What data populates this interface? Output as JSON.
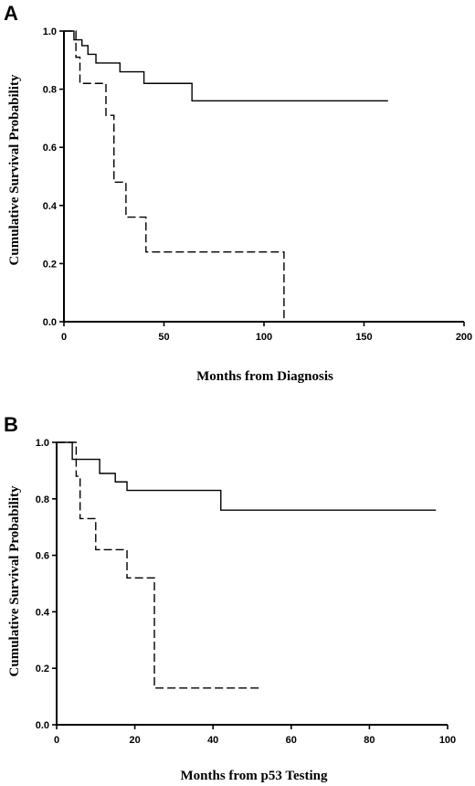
{
  "chart_data": [
    {
      "panel": "A",
      "type": "line",
      "xlabel": "Months from Diagnosis",
      "ylabel": "Cumulative Survival Probability",
      "xlim": [
        0,
        200
      ],
      "ylim": [
        0,
        1.0
      ],
      "xticks": [
        "0",
        "50",
        "100",
        "150",
        "200"
      ],
      "yticks": [
        "0.0",
        "0.2",
        "0.4",
        "0.6",
        "0.8",
        "1.0"
      ],
      "grid": false,
      "series": [
        {
          "style": "solid",
          "steps": [
            [
              0,
              1.0
            ],
            [
              5,
              0.97
            ],
            [
              9,
              0.95
            ],
            [
              12,
              0.92
            ],
            [
              16,
              0.89
            ],
            [
              28,
              0.86
            ],
            [
              40,
              0.82
            ],
            [
              64,
              0.76
            ],
            [
              162,
              0.76
            ]
          ]
        },
        {
          "style": "dashed",
          "steps": [
            [
              0,
              1.0
            ],
            [
              6,
              0.91
            ],
            [
              8,
              0.82
            ],
            [
              21,
              0.71
            ],
            [
              25,
              0.48
            ],
            [
              31,
              0.36
            ],
            [
              41,
              0.24
            ],
            [
              110,
              0.0
            ]
          ]
        }
      ]
    },
    {
      "panel": "B",
      "type": "line",
      "xlabel": "Months from p53 Testing",
      "ylabel": "Cumulative Survival Probability",
      "xlim": [
        0,
        100
      ],
      "ylim": [
        0,
        1.0
      ],
      "xticks": [
        "0",
        "20",
        "40",
        "60",
        "80",
        "100"
      ],
      "yticks": [
        "0.0",
        "0.2",
        "0.4",
        "0.6",
        "0.8",
        "1.0"
      ],
      "grid": false,
      "series": [
        {
          "style": "solid",
          "steps": [
            [
              0,
              1.0
            ],
            [
              4,
              0.94
            ],
            [
              11,
              0.89
            ],
            [
              15,
              0.86
            ],
            [
              18,
              0.83
            ],
            [
              42,
              0.76
            ],
            [
              97,
              0.76
            ]
          ]
        },
        {
          "style": "dashed",
          "steps": [
            [
              0,
              1.0
            ],
            [
              5,
              0.88
            ],
            [
              6,
              0.73
            ],
            [
              10,
              0.62
            ],
            [
              18,
              0.52
            ],
            [
              25,
              0.13
            ],
            [
              52,
              0.13
            ]
          ]
        }
      ]
    }
  ]
}
